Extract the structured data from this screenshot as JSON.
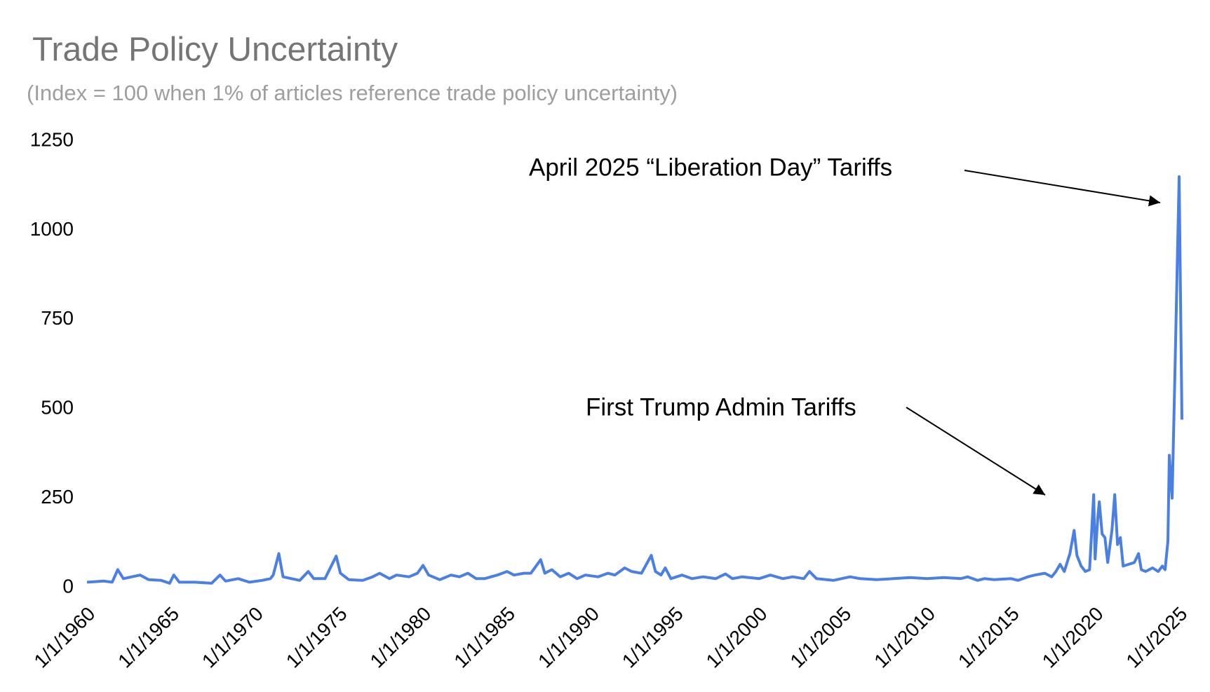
{
  "chart_data": {
    "type": "line",
    "title": "Trade Policy Uncertainty",
    "subtitle": "(Index = 100 when 1% of articles reference trade policy uncertainty)",
    "annotations": [
      "April 2025 “Liberation Day” Tariffs",
      "First Trump Admin Tariffs"
    ],
    "xlim": [
      "1960-01",
      "2025-04"
    ],
    "xticks": [
      {
        "value": "1960-01",
        "label": "1/1/1960"
      },
      {
        "value": "1965-01",
        "label": "1/1/1965"
      },
      {
        "value": "1970-01",
        "label": "1/1/1970"
      },
      {
        "value": "1975-01",
        "label": "1/1/1975"
      },
      {
        "value": "1980-01",
        "label": "1/1/1980"
      },
      {
        "value": "1985-01",
        "label": "1/1/1985"
      },
      {
        "value": "1990-01",
        "label": "1/1/1990"
      },
      {
        "value": "1995-01",
        "label": "1/1/1995"
      },
      {
        "value": "2000-01",
        "label": "1/1/2000"
      },
      {
        "value": "2005-01",
        "label": "1/1/2005"
      },
      {
        "value": "2010-01",
        "label": "1/1/2010"
      },
      {
        "value": "2015-01",
        "label": "1/1/2015"
      },
      {
        "value": "2020-01",
        "label": "1/1/2020"
      },
      {
        "value": "2025-01",
        "label": "1/1/2025"
      }
    ],
    "ylim": [
      0,
      1250
    ],
    "yticks": [
      0,
      250,
      500,
      750,
      1000,
      1250
    ],
    "grid": false,
    "x": [
      "1960-01",
      "1961-01",
      "1961-07",
      "1961-11",
      "1962-03",
      "1962-09",
      "1963-03",
      "1963-09",
      "1964-06",
      "1964-12",
      "1965-03",
      "1965-07",
      "1966-06",
      "1967-06",
      "1967-12",
      "1968-04",
      "1969-01",
      "1969-09",
      "1970-06",
      "1970-12",
      "1971-02",
      "1971-06",
      "1971-09",
      "1972-03",
      "1972-09",
      "1973-03",
      "1973-07",
      "1974-03",
      "1974-11",
      "1975-02",
      "1975-08",
      "1976-06",
      "1977-01",
      "1977-06",
      "1978-01",
      "1978-06",
      "1979-03",
      "1979-09",
      "1980-01",
      "1980-05",
      "1981-01",
      "1981-09",
      "1982-03",
      "1982-09",
      "1983-03",
      "1983-09",
      "1984-06",
      "1985-01",
      "1985-06",
      "1986-01",
      "1986-06",
      "1987-01",
      "1987-04",
      "1987-09",
      "1988-03",
      "1988-09",
      "1989-03",
      "1989-09",
      "1990-06",
      "1991-01",
      "1991-06",
      "1992-01",
      "1992-06",
      "1993-01",
      "1993-08",
      "1993-11",
      "1994-03",
      "1994-06",
      "1994-10",
      "1995-06",
      "1996-01",
      "1996-09",
      "1997-06",
      "1998-01",
      "1998-06",
      "1999-01",
      "2000-01",
      "2000-09",
      "2001-06",
      "2002-01",
      "2002-09",
      "2003-01",
      "2003-06",
      "2004-06",
      "2005-06",
      "2006-01",
      "2007-01",
      "2008-01",
      "2009-01",
      "2010-01",
      "2011-01",
      "2012-01",
      "2012-06",
      "2013-01",
      "2013-06",
      "2014-01",
      "2015-01",
      "2015-06",
      "2016-01",
      "2016-06",
      "2017-01",
      "2017-06",
      "2017-09",
      "2017-12",
      "2018-03",
      "2018-07",
      "2018-10",
      "2018-12",
      "2019-03",
      "2019-06",
      "2019-09",
      "2019-12",
      "2020-01",
      "2020-03",
      "2020-04",
      "2020-06",
      "2020-08",
      "2020-10",
      "2021-01",
      "2021-03",
      "2021-05",
      "2021-07",
      "2021-09",
      "2022-01",
      "2022-05",
      "2022-08",
      "2022-10",
      "2023-01",
      "2023-06",
      "2023-10",
      "2024-01",
      "2024-03",
      "2024-04",
      "2024-05",
      "2024-06",
      "2024-08",
      "2024-10",
      "2025-01",
      "2025-03"
    ],
    "series": [
      {
        "name": "Trade Policy Uncertainty",
        "color": "#4a7fe3",
        "values": [
          15,
          18,
          15,
          50,
          25,
          30,
          35,
          22,
          20,
          12,
          35,
          15,
          15,
          12,
          35,
          18,
          25,
          15,
          20,
          25,
          35,
          95,
          30,
          25,
          20,
          45,
          25,
          25,
          88,
          40,
          22,
          20,
          30,
          40,
          25,
          35,
          30,
          40,
          62,
          35,
          22,
          35,
          30,
          40,
          25,
          25,
          35,
          45,
          35,
          40,
          40,
          78,
          40,
          50,
          30,
          40,
          25,
          35,
          30,
          40,
          35,
          55,
          45,
          40,
          90,
          45,
          35,
          55,
          25,
          35,
          25,
          30,
          25,
          38,
          25,
          30,
          25,
          35,
          25,
          30,
          25,
          45,
          25,
          20,
          30,
          25,
          22,
          25,
          28,
          25,
          28,
          25,
          30,
          20,
          25,
          22,
          25,
          20,
          30,
          35,
          40,
          30,
          45,
          65,
          45,
          95,
          160,
          90,
          60,
          45,
          50,
          260,
          80,
          200,
          240,
          150,
          140,
          70,
          160,
          260,
          120,
          140,
          60,
          65,
          70,
          95,
          50,
          45,
          55,
          45,
          60,
          50,
          90,
          130,
          370,
          250,
          600,
          1150,
          470
        ]
      }
    ]
  }
}
